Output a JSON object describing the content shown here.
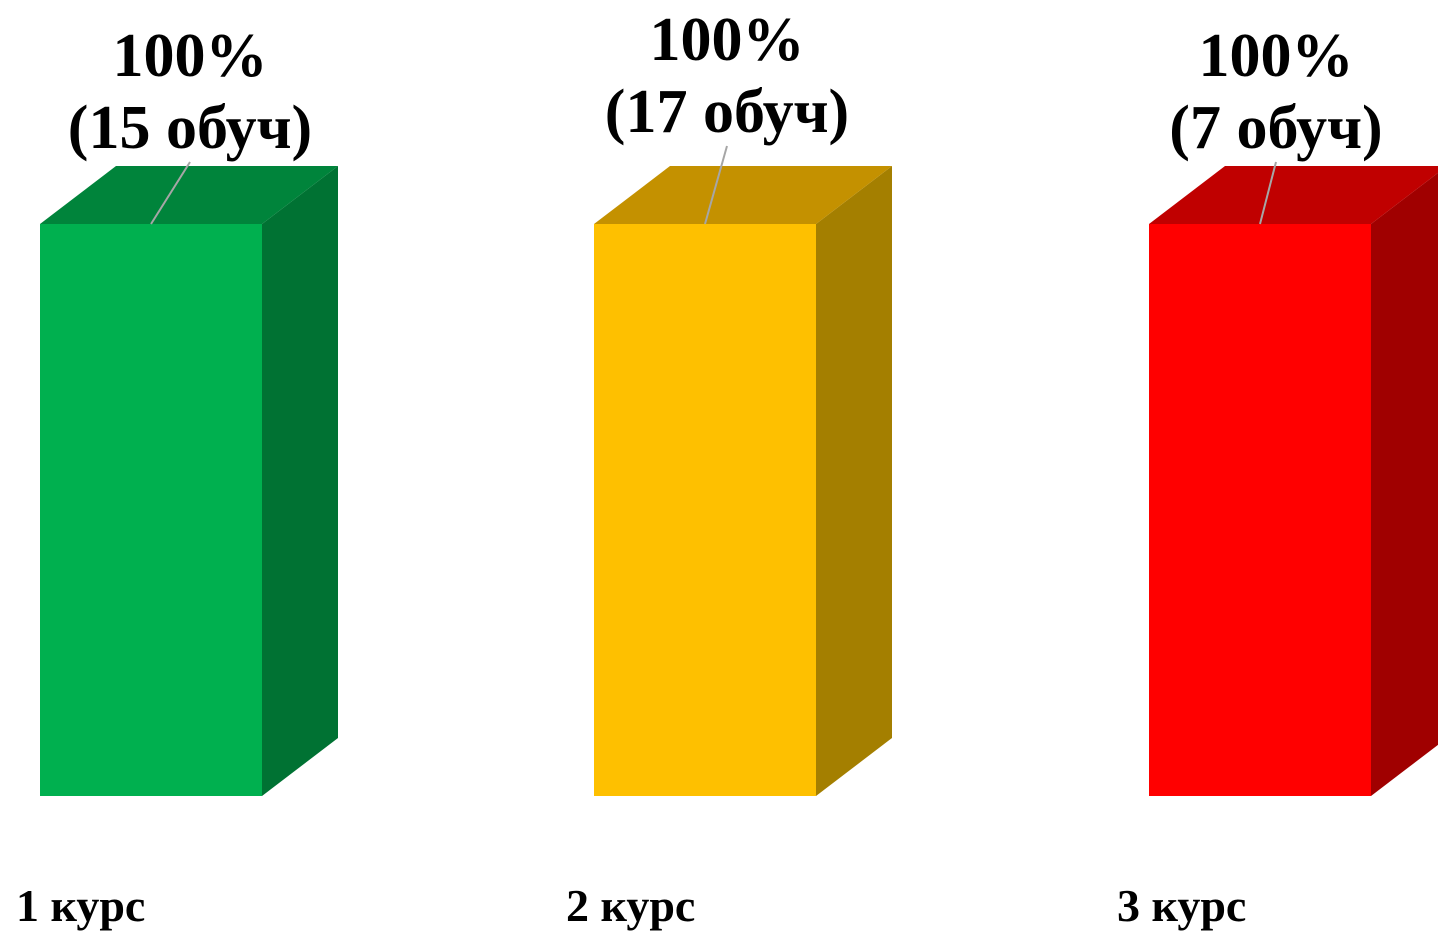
{
  "chart_data": {
    "type": "bar",
    "style": "3d",
    "categories": [
      "1 курс",
      "2 курс",
      "3 курс"
    ],
    "values": [
      100,
      100,
      100
    ],
    "counts": [
      15,
      17,
      7
    ],
    "data_labels": [
      {
        "percent": "100%",
        "count": "(15 обуч)"
      },
      {
        "percent": "100%",
        "count": "(17 обуч)"
      },
      {
        "percent": "100%",
        "count": "(7 обуч)"
      }
    ],
    "colors": [
      {
        "front": "#00b04f",
        "top": "#00843b",
        "side": "#007233"
      },
      {
        "front": "#fec000",
        "top": "#c49100",
        "side": "#a47f00"
      },
      {
        "front": "#ff0000",
        "top": "#c00000",
        "side": "#a00000"
      }
    ],
    "title": "",
    "xlabel": "",
    "ylabel": "",
    "ylim": [
      0,
      100
    ],
    "grid": false,
    "legend": "none"
  }
}
